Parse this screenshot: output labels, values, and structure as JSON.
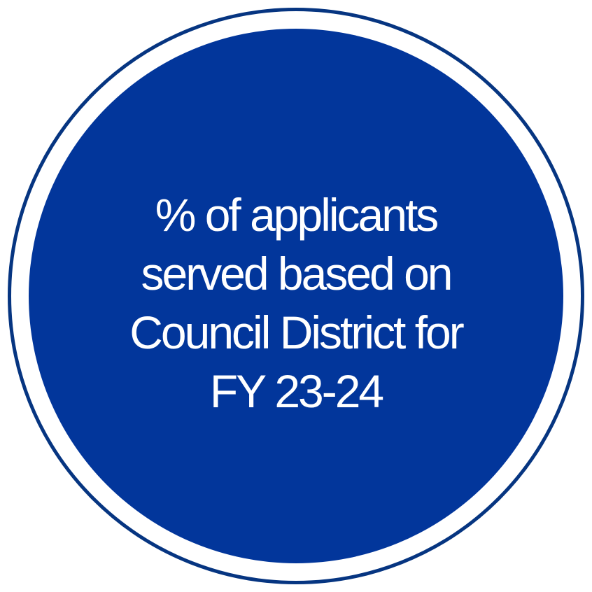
{
  "badge": {
    "lines": [
      "% of applicants",
      "served based on",
      "Council District for",
      "FY 23-24"
    ],
    "colors": {
      "fill": "#02369b",
      "ring": "#063581",
      "text": "#ffffff",
      "background": "#ffffff"
    }
  }
}
